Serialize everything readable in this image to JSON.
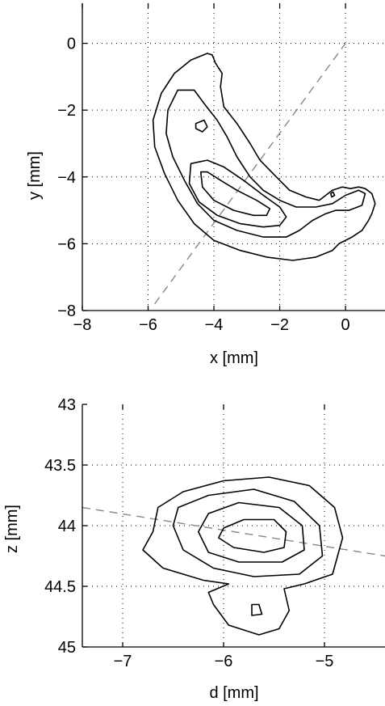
{
  "chart_data": [
    {
      "type": "contour",
      "xlabel": "x [mm]",
      "ylabel": "y [mm]",
      "xlim": [
        -8,
        1.2
      ],
      "ylim": [
        -8,
        1.2
      ],
      "xticks": [
        -8,
        -6,
        -4,
        -2,
        0
      ],
      "yticks": [
        -8,
        -6,
        -4,
        -2,
        0
      ],
      "xtick_labels": [
        "−8",
        "−6",
        "−4",
        "−2",
        "0"
      ],
      "ytick_labels": [
        "−8",
        "−6",
        "−4",
        "−2",
        "0"
      ],
      "grid": true,
      "reference_line": {
        "points": [
          [
            -5.8,
            -7.8
          ],
          [
            0.0,
            0.0
          ]
        ],
        "style": "dashed"
      },
      "contours": [
        {
          "level": 1,
          "points": [
            [
              -4.2,
              -0.3
            ],
            [
              -4.7,
              -0.5
            ],
            [
              -5.2,
              -0.9
            ],
            [
              -5.6,
              -1.5
            ],
            [
              -5.85,
              -2.3
            ],
            [
              -5.8,
              -3.1
            ],
            [
              -5.5,
              -3.9
            ],
            [
              -5.1,
              -4.7
            ],
            [
              -4.6,
              -5.4
            ],
            [
              -4.0,
              -5.9
            ],
            [
              -3.2,
              -6.2
            ],
            [
              -2.4,
              -6.4
            ],
            [
              -1.6,
              -6.5
            ],
            [
              -0.9,
              -6.4
            ],
            [
              -0.4,
              -6.2
            ],
            [
              -0.2,
              -6.0
            ],
            [
              0.2,
              -5.8
            ],
            [
              0.5,
              -5.6
            ],
            [
              0.7,
              -5.3
            ],
            [
              0.8,
              -5.1
            ],
            [
              0.9,
              -4.8
            ],
            [
              0.8,
              -4.5
            ],
            [
              0.6,
              -4.35
            ],
            [
              0.4,
              -4.3
            ],
            [
              0.15,
              -4.35
            ],
            [
              -0.1,
              -4.3
            ],
            [
              -0.4,
              -4.4
            ],
            [
              -0.8,
              -4.7
            ],
            [
              -1.2,
              -4.6
            ],
            [
              -1.7,
              -4.4
            ],
            [
              -2.2,
              -3.9
            ],
            [
              -2.6,
              -3.5
            ],
            [
              -2.9,
              -3.0
            ],
            [
              -3.3,
              -2.4
            ],
            [
              -3.7,
              -1.9
            ],
            [
              -3.8,
              -1.3
            ],
            [
              -3.75,
              -0.9
            ],
            [
              -3.95,
              -0.6
            ],
            [
              -4.05,
              -0.35
            ],
            [
              -4.2,
              -0.3
            ]
          ]
        },
        {
          "level": 2,
          "points": [
            [
              -5.1,
              -1.4
            ],
            [
              -5.4,
              -2.0
            ],
            [
              -5.45,
              -2.7
            ],
            [
              -5.25,
              -3.4
            ],
            [
              -4.9,
              -4.1
            ],
            [
              -4.5,
              -4.8
            ],
            [
              -4.0,
              -5.3
            ],
            [
              -3.3,
              -5.6
            ],
            [
              -2.5,
              -5.8
            ],
            [
              -1.8,
              -5.8
            ],
            [
              -1.4,
              -5.6
            ],
            [
              -1.0,
              -5.3
            ],
            [
              -0.6,
              -5.1
            ],
            [
              -0.3,
              -5.0
            ],
            [
              0.1,
              -5.0
            ],
            [
              0.5,
              -4.85
            ],
            [
              0.6,
              -4.5
            ],
            [
              0.4,
              -4.4
            ],
            [
              0.0,
              -4.55
            ],
            [
              -0.4,
              -4.8
            ],
            [
              -0.9,
              -4.9
            ],
            [
              -1.5,
              -4.9
            ],
            [
              -2.0,
              -4.7
            ],
            [
              -2.5,
              -4.4
            ],
            [
              -2.9,
              -4.0
            ],
            [
              -3.3,
              -3.4
            ],
            [
              -3.6,
              -2.8
            ],
            [
              -3.9,
              -2.3
            ],
            [
              -4.3,
              -1.8
            ],
            [
              -4.6,
              -1.4
            ],
            [
              -5.1,
              -1.4
            ]
          ]
        },
        {
          "level": 2,
          "points": [
            [
              -4.55,
              -2.4
            ],
            [
              -4.3,
              -2.3
            ],
            [
              -4.2,
              -2.5
            ],
            [
              -4.35,
              -2.65
            ],
            [
              -4.55,
              -2.55
            ],
            [
              -4.55,
              -2.4
            ]
          ]
        },
        {
          "level": 3,
          "points": [
            [
              -4.7,
              -3.6
            ],
            [
              -4.75,
              -4.2
            ],
            [
              -4.45,
              -4.75
            ],
            [
              -3.9,
              -5.15
            ],
            [
              -3.2,
              -5.4
            ],
            [
              -2.5,
              -5.5
            ],
            [
              -2.0,
              -5.45
            ],
            [
              -1.8,
              -5.2
            ],
            [
              -2.0,
              -4.9
            ],
            [
              -2.5,
              -4.55
            ],
            [
              -3.1,
              -4.1
            ],
            [
              -3.7,
              -3.7
            ],
            [
              -4.2,
              -3.5
            ],
            [
              -4.7,
              -3.6
            ]
          ]
        },
        {
          "level": 4,
          "points": [
            [
              -4.4,
              -3.85
            ],
            [
              -4.35,
              -4.3
            ],
            [
              -4.0,
              -4.7
            ],
            [
              -3.4,
              -5.0
            ],
            [
              -2.8,
              -5.15
            ],
            [
              -2.4,
              -5.15
            ],
            [
              -2.3,
              -4.95
            ],
            [
              -2.7,
              -4.7
            ],
            [
              -3.3,
              -4.4
            ],
            [
              -3.8,
              -4.1
            ],
            [
              -4.2,
              -3.85
            ],
            [
              -4.4,
              -3.85
            ]
          ]
        },
        {
          "level": 4,
          "points": [
            [
              -0.45,
              -4.5
            ],
            [
              -0.38,
              -4.45
            ],
            [
              -0.33,
              -4.55
            ],
            [
              -0.42,
              -4.6
            ],
            [
              -0.45,
              -4.5
            ]
          ]
        }
      ]
    },
    {
      "type": "contour",
      "xlabel": "d [mm]",
      "ylabel": "z [mm]",
      "xlim": [
        -7.4,
        -4.4
      ],
      "ylim": [
        45,
        43
      ],
      "xticks": [
        -7,
        -6,
        -5
      ],
      "yticks": [
        43,
        43.5,
        44,
        44.5,
        45
      ],
      "xtick_labels": [
        "−7",
        "−6",
        "−5"
      ],
      "ytick_labels": [
        "43",
        "43.5",
        "44",
        "44.5",
        "45"
      ],
      "y_reversed": true,
      "grid": true,
      "reference_line": {
        "points": [
          [
            -7.4,
            43.85
          ],
          [
            -4.4,
            44.25
          ]
        ],
        "style": "dashed"
      },
      "contours": [
        {
          "level": 1,
          "points": [
            [
              -6.7,
              44.05
            ],
            [
              -6.65,
              43.85
            ],
            [
              -6.4,
              43.72
            ],
            [
              -6.0,
              43.63
            ],
            [
              -5.55,
              43.6
            ],
            [
              -5.15,
              43.67
            ],
            [
              -4.9,
              43.85
            ],
            [
              -4.82,
              44.1
            ],
            [
              -4.92,
              44.4
            ],
            [
              -5.2,
              44.48
            ],
            [
              -5.4,
              44.52
            ],
            [
              -5.35,
              44.7
            ],
            [
              -5.45,
              44.85
            ],
            [
              -5.65,
              44.9
            ],
            [
              -5.95,
              44.82
            ],
            [
              -6.1,
              44.65
            ],
            [
              -6.15,
              44.55
            ],
            [
              -5.95,
              44.48
            ],
            [
              -6.2,
              44.45
            ],
            [
              -6.6,
              44.35
            ],
            [
              -6.8,
              44.2
            ],
            [
              -6.7,
              44.05
            ]
          ]
        },
        {
          "level": 2,
          "points": [
            [
              -6.5,
              44.0
            ],
            [
              -6.45,
              43.85
            ],
            [
              -6.15,
              43.75
            ],
            [
              -5.7,
              43.7
            ],
            [
              -5.3,
              43.8
            ],
            [
              -5.05,
              44.0
            ],
            [
              -5.02,
              44.25
            ],
            [
              -5.25,
              44.4
            ],
            [
              -5.7,
              44.42
            ],
            [
              -6.1,
              44.35
            ],
            [
              -6.4,
              44.2
            ],
            [
              -6.5,
              44.0
            ]
          ]
        },
        {
          "level": 3,
          "points": [
            [
              -6.25,
              44.05
            ],
            [
              -6.15,
              43.9
            ],
            [
              -5.85,
              43.81
            ],
            [
              -5.45,
              43.85
            ],
            [
              -5.22,
              44.0
            ],
            [
              -5.2,
              44.2
            ],
            [
              -5.42,
              44.3
            ],
            [
              -5.85,
              44.3
            ],
            [
              -6.15,
              44.22
            ],
            [
              -6.25,
              44.05
            ]
          ]
        },
        {
          "level": 4,
          "points": [
            [
              -6.0,
              44.02
            ],
            [
              -5.8,
              43.95
            ],
            [
              -5.5,
              43.95
            ],
            [
              -5.38,
              44.05
            ],
            [
              -5.4,
              44.18
            ],
            [
              -5.6,
              44.22
            ],
            [
              -5.9,
              44.18
            ],
            [
              -6.05,
              44.1
            ],
            [
              -6.0,
              44.02
            ]
          ]
        },
        {
          "level": 4,
          "points": [
            [
              -5.72,
              44.65
            ],
            [
              -5.65,
              44.65
            ],
            [
              -5.62,
              44.73
            ],
            [
              -5.72,
              44.74
            ],
            [
              -5.72,
              44.65
            ]
          ]
        }
      ]
    }
  ]
}
